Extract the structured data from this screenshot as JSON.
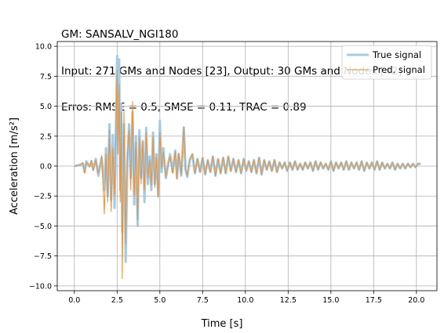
{
  "title_lines": [
    "GM: SANSALV_NGI180",
    "Input: 271 GMs and Nodes [23], Output: 30 GMs and Nodes [42]",
    "Erros: RMSE = 0.5, SMSE = 0.11, TRAC = 0.89"
  ],
  "chart_data": {
    "type": "line",
    "xlabel": "Time [s]",
    "ylabel": "Acceleration [m/s²]",
    "xlim": [
      -1.0,
      21.2
    ],
    "ylim": [
      -10.4,
      10.4
    ],
    "grid": true,
    "legend_position": "top-right",
    "x_ticks": [
      0.0,
      2.5,
      5.0,
      7.5,
      10.0,
      12.5,
      15.0,
      17.5,
      20.0
    ],
    "x_tick_labels": [
      "0.0",
      "2.5",
      "5.0",
      "7.5",
      "10.0",
      "12.5",
      "15.0",
      "17.5",
      "20.0"
    ],
    "y_ticks": [
      -10.0,
      -7.5,
      -5.0,
      -2.5,
      0.0,
      2.5,
      5.0,
      7.5,
      10.0
    ],
    "y_tick_labels": [
      "−10.0",
      "−7.5",
      "−5.0",
      "−2.5",
      "0.0",
      "2.5",
      "5.0",
      "7.5",
      "10.0"
    ],
    "series": [
      {
        "name": "True signal",
        "color": "#a6cbe3",
        "points": [
          [
            0.0,
            0.0
          ],
          [
            0.3,
            0.1
          ],
          [
            0.5,
            0.2
          ],
          [
            0.6,
            -0.5
          ],
          [
            0.7,
            0.4
          ],
          [
            0.9,
            0.0
          ],
          [
            1.0,
            0.4
          ],
          [
            1.1,
            -0.3
          ],
          [
            1.25,
            0.6
          ],
          [
            1.4,
            -0.8
          ],
          [
            1.6,
            0.7
          ],
          [
            1.75,
            -2.0
          ],
          [
            1.85,
            1.5
          ],
          [
            1.95,
            -2.5
          ],
          [
            2.05,
            3.5
          ],
          [
            2.15,
            -2.8
          ],
          [
            2.25,
            2.6
          ],
          [
            2.35,
            -3.5
          ],
          [
            2.45,
            5.0
          ],
          [
            2.5,
            9.2
          ],
          [
            2.55,
            4.0
          ],
          [
            2.62,
            8.9
          ],
          [
            2.68,
            -2.0
          ],
          [
            2.74,
            5.2
          ],
          [
            2.8,
            -5.5
          ],
          [
            2.9,
            3.5
          ],
          [
            3.0,
            -8.0
          ],
          [
            3.1,
            0.5
          ],
          [
            3.2,
            3.5
          ],
          [
            3.3,
            -1.0
          ],
          [
            3.4,
            4.5
          ],
          [
            3.5,
            -3.2
          ],
          [
            3.6,
            2.5
          ],
          [
            3.7,
            -5.0
          ],
          [
            3.8,
            3.0
          ],
          [
            3.9,
            -1.0
          ],
          [
            4.0,
            2.0
          ],
          [
            4.1,
            -3.0
          ],
          [
            4.2,
            3.2
          ],
          [
            4.3,
            -1.5
          ],
          [
            4.4,
            0.8
          ],
          [
            4.5,
            -2.0
          ],
          [
            4.6,
            2.8
          ],
          [
            4.7,
            -1.5
          ],
          [
            4.8,
            1.0
          ],
          [
            4.9,
            -2.5
          ],
          [
            5.0,
            3.8
          ],
          [
            5.1,
            -0.5
          ],
          [
            5.2,
            1.5
          ],
          [
            5.35,
            -1.0
          ],
          [
            5.5,
            0.3
          ],
          [
            5.6,
            1.0
          ],
          [
            5.75,
            -0.5
          ],
          [
            5.9,
            1.3
          ],
          [
            6.0,
            -1.0
          ],
          [
            6.1,
            1.0
          ],
          [
            6.25,
            -0.8
          ],
          [
            6.4,
            3.2
          ],
          [
            6.5,
            -0.3
          ],
          [
            6.6,
            -0.9
          ],
          [
            6.75,
            0.5
          ],
          [
            6.9,
            1.0
          ],
          [
            7.05,
            -0.6
          ],
          [
            7.2,
            0.6
          ],
          [
            7.35,
            -0.5
          ],
          [
            7.5,
            0.7
          ],
          [
            7.65,
            -0.7
          ],
          [
            7.8,
            0.5
          ],
          [
            7.95,
            -0.5
          ],
          [
            8.1,
            0.8
          ],
          [
            8.25,
            -0.8
          ],
          [
            8.4,
            0.6
          ],
          [
            8.55,
            -0.6
          ],
          [
            8.7,
            0.7
          ],
          [
            8.85,
            -0.6
          ],
          [
            9.0,
            0.8
          ],
          [
            9.15,
            -0.4
          ],
          [
            9.3,
            0.6
          ],
          [
            9.45,
            -0.5
          ],
          [
            9.6,
            0.5
          ],
          [
            9.75,
            -0.6
          ],
          [
            9.9,
            0.6
          ],
          [
            10.05,
            -0.4
          ],
          [
            10.2,
            0.4
          ],
          [
            10.35,
            -0.5
          ],
          [
            10.5,
            0.5
          ],
          [
            10.65,
            -0.6
          ],
          [
            10.8,
            0.7
          ],
          [
            10.95,
            -0.7
          ],
          [
            11.1,
            0.5
          ],
          [
            11.25,
            -0.3
          ],
          [
            11.4,
            0.4
          ],
          [
            11.55,
            -0.4
          ],
          [
            11.7,
            0.5
          ],
          [
            11.85,
            -0.5
          ],
          [
            12.0,
            0.3
          ],
          [
            12.15,
            -0.2
          ],
          [
            12.3,
            0.3
          ],
          [
            12.45,
            -0.4
          ],
          [
            12.6,
            0.3
          ],
          [
            12.75,
            -0.3
          ],
          [
            12.9,
            0.4
          ],
          [
            13.05,
            -0.3
          ],
          [
            13.2,
            0.2
          ],
          [
            13.35,
            -0.3
          ],
          [
            13.5,
            0.3
          ],
          [
            13.65,
            -0.2
          ],
          [
            13.8,
            0.3
          ],
          [
            13.95,
            -0.4
          ],
          [
            14.1,
            0.4
          ],
          [
            14.25,
            -0.3
          ],
          [
            14.4,
            0.3
          ],
          [
            14.55,
            -0.2
          ],
          [
            14.7,
            0.2
          ],
          [
            14.85,
            -0.3
          ],
          [
            15.0,
            0.4
          ],
          [
            15.15,
            -0.4
          ],
          [
            15.3,
            0.3
          ],
          [
            15.45,
            -0.2
          ],
          [
            15.6,
            0.3
          ],
          [
            15.75,
            -0.3
          ],
          [
            15.9,
            0.4
          ],
          [
            16.05,
            -0.3
          ],
          [
            16.2,
            0.3
          ],
          [
            16.35,
            -0.2
          ],
          [
            16.5,
            0.3
          ],
          [
            16.65,
            -0.3
          ],
          [
            16.8,
            0.4
          ],
          [
            16.95,
            -0.4
          ],
          [
            17.1,
            0.3
          ],
          [
            17.25,
            -0.2
          ],
          [
            17.4,
            0.3
          ],
          [
            17.55,
            -0.3
          ],
          [
            17.7,
            0.4
          ],
          [
            17.85,
            -0.3
          ],
          [
            18.0,
            0.3
          ],
          [
            18.15,
            -0.2
          ],
          [
            18.3,
            0.2
          ],
          [
            18.45,
            -0.2
          ],
          [
            18.6,
            0.3
          ],
          [
            18.75,
            -0.3
          ],
          [
            18.9,
            0.2
          ],
          [
            19.05,
            -0.2
          ],
          [
            19.2,
            0.2
          ],
          [
            19.35,
            -0.2
          ],
          [
            19.5,
            0.2
          ],
          [
            19.65,
            -0.1
          ],
          [
            19.8,
            0.2
          ],
          [
            19.95,
            -0.1
          ],
          [
            20.1,
            0.2
          ],
          [
            20.25,
            0.2
          ]
        ]
      },
      {
        "name": "Pred. signal",
        "color": "#e6913b",
        "points": [
          [
            0.0,
            0.0
          ],
          [
            0.3,
            0.05
          ],
          [
            0.5,
            0.3
          ],
          [
            0.6,
            -0.6
          ],
          [
            0.7,
            0.3
          ],
          [
            0.9,
            -0.1
          ],
          [
            1.0,
            0.5
          ],
          [
            1.1,
            -0.4
          ],
          [
            1.25,
            0.5
          ],
          [
            1.4,
            -0.6
          ],
          [
            1.6,
            0.9
          ],
          [
            1.75,
            -4.0
          ],
          [
            1.85,
            1.0
          ],
          [
            1.95,
            -3.0
          ],
          [
            2.05,
            3.0
          ],
          [
            2.15,
            -3.8
          ],
          [
            2.25,
            1.5
          ],
          [
            2.35,
            -2.5
          ],
          [
            2.45,
            4.0
          ],
          [
            2.5,
            8.0
          ],
          [
            2.55,
            1.0
          ],
          [
            2.62,
            6.8
          ],
          [
            2.68,
            -3.0
          ],
          [
            2.74,
            4.5
          ],
          [
            2.8,
            -9.4
          ],
          [
            2.9,
            4.6
          ],
          [
            3.0,
            -6.5
          ],
          [
            3.1,
            1.0
          ],
          [
            3.2,
            3.0
          ],
          [
            3.3,
            -2.0
          ],
          [
            3.4,
            5.4
          ],
          [
            3.5,
            -2.5
          ],
          [
            3.6,
            2.0
          ],
          [
            3.7,
            -4.5
          ],
          [
            3.8,
            2.5
          ],
          [
            3.9,
            -1.5
          ],
          [
            4.0,
            2.2
          ],
          [
            4.1,
            -2.0
          ],
          [
            4.2,
            2.8
          ],
          [
            4.3,
            -1.0
          ],
          [
            4.4,
            0.5
          ],
          [
            4.5,
            -1.6
          ],
          [
            4.6,
            2.5
          ],
          [
            4.7,
            -1.8
          ],
          [
            4.8,
            0.7
          ],
          [
            4.9,
            -2.6
          ],
          [
            5.0,
            2.8
          ],
          [
            5.1,
            -0.2
          ],
          [
            5.2,
            1.2
          ],
          [
            5.35,
            -0.9
          ],
          [
            5.5,
            0.2
          ],
          [
            5.6,
            0.8
          ],
          [
            5.75,
            -0.6
          ],
          [
            5.9,
            1.2
          ],
          [
            6.0,
            -1.1
          ],
          [
            6.1,
            1.1
          ],
          [
            6.25,
            -0.7
          ],
          [
            6.4,
            3.3
          ],
          [
            6.5,
            -0.2
          ],
          [
            6.6,
            -0.8
          ],
          [
            6.75,
            0.6
          ],
          [
            6.9,
            1.0
          ],
          [
            7.05,
            -0.6
          ],
          [
            7.2,
            0.6
          ],
          [
            7.35,
            -0.5
          ],
          [
            7.5,
            0.7
          ],
          [
            7.65,
            -0.7
          ],
          [
            7.8,
            0.5
          ],
          [
            7.95,
            -0.5
          ],
          [
            8.1,
            0.8
          ],
          [
            8.25,
            -0.8
          ],
          [
            8.4,
            0.6
          ],
          [
            8.55,
            -0.6
          ],
          [
            8.7,
            0.7
          ],
          [
            8.85,
            -0.6
          ],
          [
            9.0,
            0.8
          ],
          [
            9.15,
            -0.4
          ],
          [
            9.3,
            0.6
          ],
          [
            9.45,
            -0.5
          ],
          [
            9.6,
            0.5
          ],
          [
            9.75,
            -0.6
          ],
          [
            9.9,
            0.6
          ],
          [
            10.05,
            -0.4
          ],
          [
            10.2,
            0.4
          ],
          [
            10.35,
            -0.5
          ],
          [
            10.5,
            0.5
          ],
          [
            10.65,
            -0.6
          ],
          [
            10.8,
            0.7
          ],
          [
            10.95,
            -0.7
          ],
          [
            11.1,
            0.5
          ],
          [
            11.25,
            -0.3
          ],
          [
            11.4,
            0.4
          ],
          [
            11.55,
            -0.4
          ],
          [
            11.7,
            0.5
          ],
          [
            11.85,
            -0.5
          ],
          [
            12.0,
            0.3
          ],
          [
            12.15,
            -0.2
          ],
          [
            12.3,
            0.3
          ],
          [
            12.45,
            -0.4
          ],
          [
            12.6,
            0.3
          ],
          [
            12.75,
            -0.3
          ],
          [
            12.9,
            0.4
          ],
          [
            13.05,
            -0.3
          ],
          [
            13.2,
            0.2
          ],
          [
            13.35,
            -0.3
          ],
          [
            13.5,
            0.3
          ],
          [
            13.65,
            -0.2
          ],
          [
            13.8,
            0.3
          ],
          [
            13.95,
            -0.4
          ],
          [
            14.1,
            0.4
          ],
          [
            14.25,
            -0.3
          ],
          [
            14.4,
            0.3
          ],
          [
            14.55,
            -0.2
          ],
          [
            14.7,
            0.2
          ],
          [
            14.85,
            -0.3
          ],
          [
            15.0,
            0.4
          ],
          [
            15.15,
            -0.4
          ],
          [
            15.3,
            0.3
          ],
          [
            15.45,
            -0.2
          ],
          [
            15.6,
            0.3
          ],
          [
            15.75,
            -0.3
          ],
          [
            15.9,
            0.4
          ],
          [
            16.05,
            -0.3
          ],
          [
            16.2,
            0.3
          ],
          [
            16.35,
            -0.2
          ],
          [
            16.5,
            0.3
          ],
          [
            16.65,
            -0.3
          ],
          [
            16.8,
            0.4
          ],
          [
            16.95,
            -0.4
          ],
          [
            17.1,
            0.3
          ],
          [
            17.25,
            -0.2
          ],
          [
            17.4,
            0.3
          ],
          [
            17.55,
            -0.3
          ],
          [
            17.7,
            0.4
          ],
          [
            17.85,
            -0.3
          ],
          [
            18.0,
            0.3
          ],
          [
            18.15,
            -0.2
          ],
          [
            18.3,
            0.2
          ],
          [
            18.45,
            -0.2
          ],
          [
            18.6,
            0.3
          ],
          [
            18.75,
            -0.3
          ],
          [
            18.9,
            0.2
          ],
          [
            19.05,
            -0.2
          ],
          [
            19.2,
            0.2
          ],
          [
            19.35,
            -0.2
          ],
          [
            19.5,
            0.2
          ],
          [
            19.65,
            -0.1
          ],
          [
            19.8,
            0.2
          ],
          [
            19.95,
            -0.1
          ],
          [
            20.1,
            0.2
          ],
          [
            20.25,
            0.2
          ]
        ]
      }
    ]
  }
}
